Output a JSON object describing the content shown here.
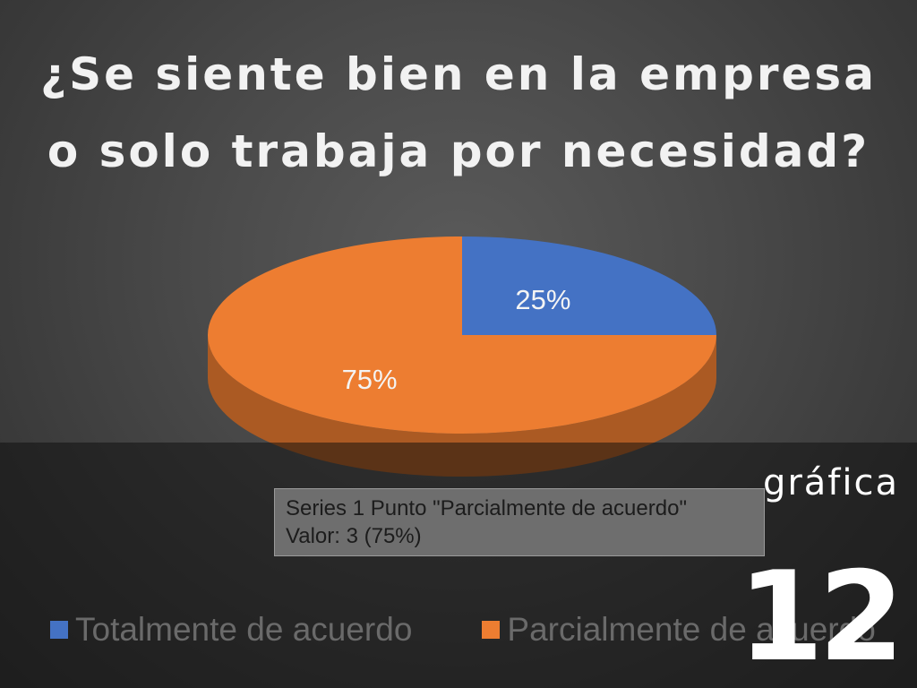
{
  "chart_data": {
    "type": "pie",
    "title": "¿Se siente bien en la empresa o solo trabaja por necesidad?",
    "categories": [
      "Totalmente de acuerdo",
      "Parcialmente de acuerdo"
    ],
    "values": [
      1,
      3
    ],
    "data_labels": [
      "25%",
      "75%"
    ],
    "colors": [
      "#4472c4",
      "#ed7d31"
    ],
    "legend_position": "bottom"
  },
  "title": {
    "line1": "¿Se siente bien en la empresa",
    "line2": "o solo trabaja por necesidad?"
  },
  "tooltip": {
    "line1": "Series 1 Punto \"Parcialmente de acuerdo\"",
    "line2": "Valor: 3 (75%)"
  },
  "legend": {
    "items": [
      {
        "label": "Totalmente de acuerdo",
        "color": "#4472c4"
      },
      {
        "label": "Parcialmente de acuerdo",
        "color": "#ed7d31"
      }
    ]
  },
  "caption": {
    "label": "gráfica",
    "number": "12"
  }
}
